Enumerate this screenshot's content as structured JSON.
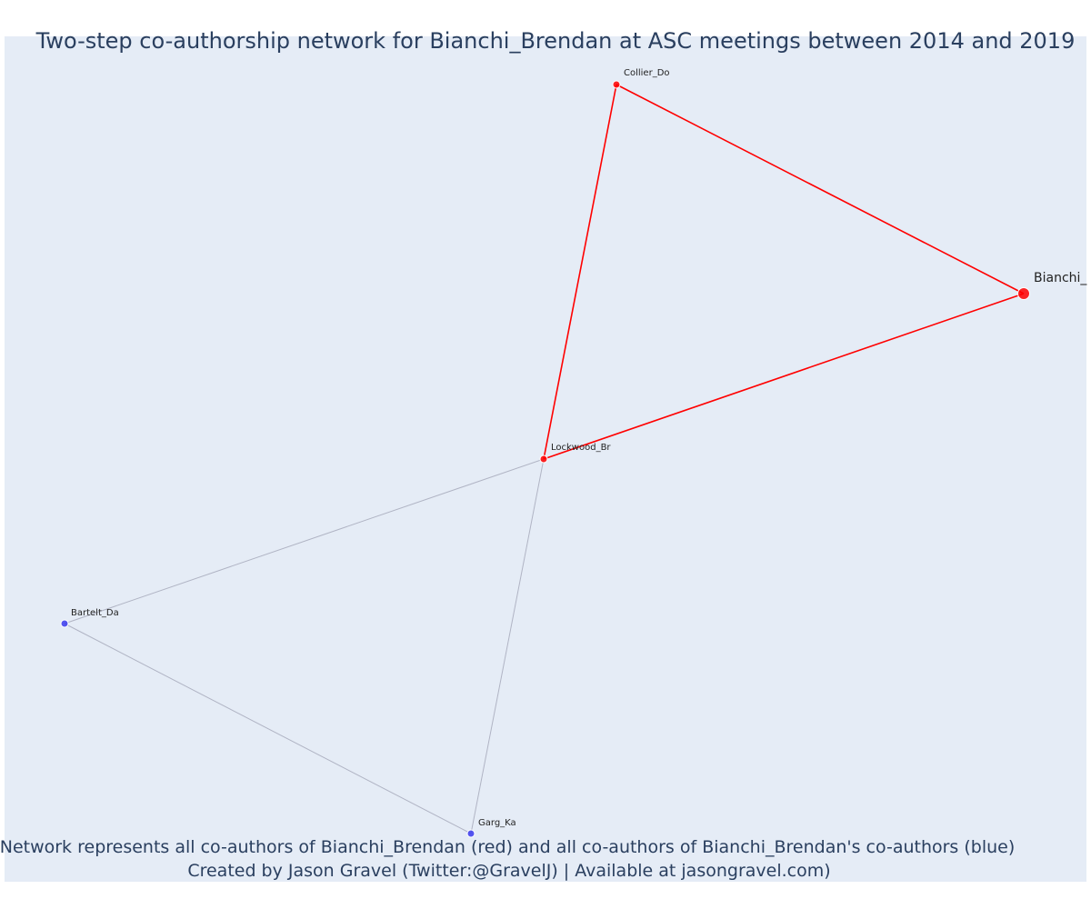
{
  "chart_data": {
    "type": "network",
    "title": "Two-step co-authorship network for Bianchi_Brendan at ASC meetings between 2014 and 2019",
    "annotation_lines": [
      "Network represents all co-authors of Bianchi_Brendan (red) and all co-authors of Bianchi_Brendan's co-authors (blue)",
      "Created by Jason Gravel (Twitter:@GravelJ) | Available at jasongravel.com)"
    ],
    "colors": {
      "plot_background": "#e5ecf6",
      "first_degree": "#ff0000",
      "second_degree": "#3b3bef",
      "edge_first_degree": "#ff0000",
      "edge_second_degree": "#b0b4c4",
      "text": "#2a3f5f"
    },
    "nodes": [
      {
        "id": "Bianchi_Brendan",
        "label": "Bianchi_",
        "group": "focus"
      },
      {
        "id": "Collier_Do",
        "label": "Collier_Do",
        "group": "first_degree"
      },
      {
        "id": "Lockwood_Br",
        "label": "Lockwood_Br",
        "group": "first_degree"
      },
      {
        "id": "Bartelt_Da",
        "label": "Bartelt_Da",
        "group": "second_degree"
      },
      {
        "id": "Garg_Ka",
        "label": "Garg_Ka",
        "group": "second_degree"
      }
    ],
    "edges": [
      {
        "source": "Collier_Do",
        "target": "Bianchi_Brendan",
        "group": "first_degree"
      },
      {
        "source": "Collier_Do",
        "target": "Lockwood_Br",
        "group": "first_degree"
      },
      {
        "source": "Lockwood_Br",
        "target": "Bianchi_Brendan",
        "group": "first_degree"
      },
      {
        "source": "Lockwood_Br",
        "target": "Bartelt_Da",
        "group": "second_degree"
      },
      {
        "source": "Lockwood_Br",
        "target": "Garg_Ka",
        "group": "second_degree"
      },
      {
        "source": "Bartelt_Da",
        "target": "Garg_Ka",
        "group": "second_degree"
      }
    ]
  }
}
